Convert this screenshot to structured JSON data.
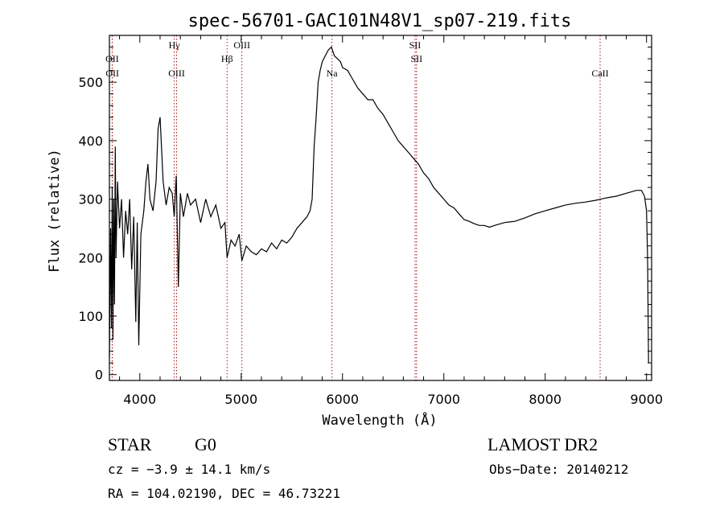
{
  "chart_data": {
    "type": "line",
    "title": "spec-56701-GAC101N48V1_sp07-219.fits",
    "xlabel": "Wavelength (Å)",
    "ylabel": "Flux (relative)",
    "xlim": [
      3700,
      9050
    ],
    "ylim": [
      -10,
      580
    ],
    "xticks": [
      4000,
      5000,
      6000,
      7000,
      8000,
      9000
    ],
    "yticks": [
      0,
      100,
      200,
      300,
      400,
      500
    ],
    "grid": false,
    "series": [
      {
        "values": [
          [
            3700,
            30
          ],
          [
            3712,
            250
          ],
          [
            3720,
            80
          ],
          [
            3728,
            320
          ],
          [
            3735,
            60
          ],
          [
            3742,
            300
          ],
          [
            3750,
            120
          ],
          [
            3758,
            390
          ],
          [
            3765,
            200
          ],
          [
            3780,
            330
          ],
          [
            3800,
            250
          ],
          [
            3820,
            300
          ],
          [
            3840,
            200
          ],
          [
            3860,
            280
          ],
          [
            3880,
            240
          ],
          [
            3900,
            300
          ],
          [
            3920,
            180
          ],
          [
            3940,
            270
          ],
          [
            3960,
            90
          ],
          [
            3975,
            260
          ],
          [
            3990,
            50
          ],
          [
            4010,
            240
          ],
          [
            4040,
            280
          ],
          [
            4060,
            330
          ],
          [
            4080,
            360
          ],
          [
            4100,
            300
          ],
          [
            4130,
            280
          ],
          [
            4160,
            330
          ],
          [
            4180,
            420
          ],
          [
            4200,
            440
          ],
          [
            4230,
            330
          ],
          [
            4260,
            290
          ],
          [
            4290,
            320
          ],
          [
            4320,
            310
          ],
          [
            4340,
            270
          ],
          [
            4360,
            340
          ],
          [
            4380,
            150
          ],
          [
            4400,
            310
          ],
          [
            4430,
            270
          ],
          [
            4470,
            310
          ],
          [
            4500,
            290
          ],
          [
            4550,
            300
          ],
          [
            4600,
            260
          ],
          [
            4650,
            300
          ],
          [
            4700,
            270
          ],
          [
            4750,
            290
          ],
          [
            4800,
            250
          ],
          [
            4840,
            260
          ],
          [
            4861,
            200
          ],
          [
            4900,
            230
          ],
          [
            4940,
            220
          ],
          [
            4980,
            240
          ],
          [
            5007,
            195
          ],
          [
            5050,
            220
          ],
          [
            5100,
            210
          ],
          [
            5150,
            205
          ],
          [
            5200,
            215
          ],
          [
            5250,
            210
          ],
          [
            5300,
            225
          ],
          [
            5350,
            215
          ],
          [
            5400,
            230
          ],
          [
            5450,
            225
          ],
          [
            5500,
            235
          ],
          [
            5550,
            250
          ],
          [
            5600,
            260
          ],
          [
            5650,
            270
          ],
          [
            5680,
            280
          ],
          [
            5700,
            300
          ],
          [
            5720,
            390
          ],
          [
            5740,
            440
          ],
          [
            5760,
            500
          ],
          [
            5780,
            520
          ],
          [
            5800,
            535
          ],
          [
            5830,
            545
          ],
          [
            5860,
            555
          ],
          [
            5890,
            560
          ],
          [
            5920,
            545
          ],
          [
            5950,
            540
          ],
          [
            5980,
            535
          ],
          [
            6000,
            525
          ],
          [
            6050,
            520
          ],
          [
            6100,
            505
          ],
          [
            6150,
            490
          ],
          [
            6200,
            480
          ],
          [
            6250,
            470
          ],
          [
            6300,
            470
          ],
          [
            6350,
            455
          ],
          [
            6400,
            445
          ],
          [
            6450,
            430
          ],
          [
            6500,
            415
          ],
          [
            6550,
            400
          ],
          [
            6600,
            390
          ],
          [
            6650,
            380
          ],
          [
            6700,
            370
          ],
          [
            6750,
            360
          ],
          [
            6800,
            345
          ],
          [
            6850,
            335
          ],
          [
            6900,
            320
          ],
          [
            6950,
            310
          ],
          [
            7000,
            300
          ],
          [
            7050,
            290
          ],
          [
            7100,
            285
          ],
          [
            7150,
            275
          ],
          [
            7200,
            265
          ],
          [
            7250,
            262
          ],
          [
            7300,
            258
          ],
          [
            7350,
            255
          ],
          [
            7400,
            255
          ],
          [
            7450,
            252
          ],
          [
            7500,
            255
          ],
          [
            7600,
            260
          ],
          [
            7700,
            262
          ],
          [
            7800,
            268
          ],
          [
            7900,
            275
          ],
          [
            8000,
            280
          ],
          [
            8100,
            285
          ],
          [
            8200,
            290
          ],
          [
            8300,
            293
          ],
          [
            8400,
            295
          ],
          [
            8500,
            298
          ],
          [
            8550,
            300
          ],
          [
            8600,
            302
          ],
          [
            8700,
            305
          ],
          [
            8800,
            310
          ],
          [
            8900,
            315
          ],
          [
            8950,
            315
          ],
          [
            8980,
            305
          ],
          [
            9000,
            280
          ],
          [
            9010,
            200
          ],
          [
            9020,
            20
          ]
        ]
      }
    ],
    "line_markers": [
      {
        "x": 3727,
        "label": "OII",
        "row": 1
      },
      {
        "x": 3729,
        "label": "OII",
        "row": 2
      },
      {
        "x": 4340,
        "label": "Hγ",
        "row": 0
      },
      {
        "x": 4363,
        "label": "OIII",
        "row": 2
      },
      {
        "x": 4861,
        "label": "Hβ",
        "row": 1
      },
      {
        "x": 5007,
        "label": "OIII",
        "row": 0
      },
      {
        "x": 5896,
        "label": "Na",
        "row": 2
      },
      {
        "x": 6716,
        "label": "SII",
        "row": 0
      },
      {
        "x": 6731,
        "label": "SII",
        "row": 1
      },
      {
        "x": 8542,
        "label": "CaII",
        "row": 2
      }
    ]
  },
  "info": {
    "object_class": "STAR",
    "subclass": "G0",
    "survey": "LAMOST DR2",
    "redshift": "cz = −3.9 ± 14.1 km/s",
    "obs_date": "Obs−Date: 20140212",
    "coords": "RA = 104.02190, DEC =  46.73221"
  },
  "colors": {
    "axes": "#000000",
    "spectrum": "#000000",
    "marker_line": "#a01818"
  }
}
